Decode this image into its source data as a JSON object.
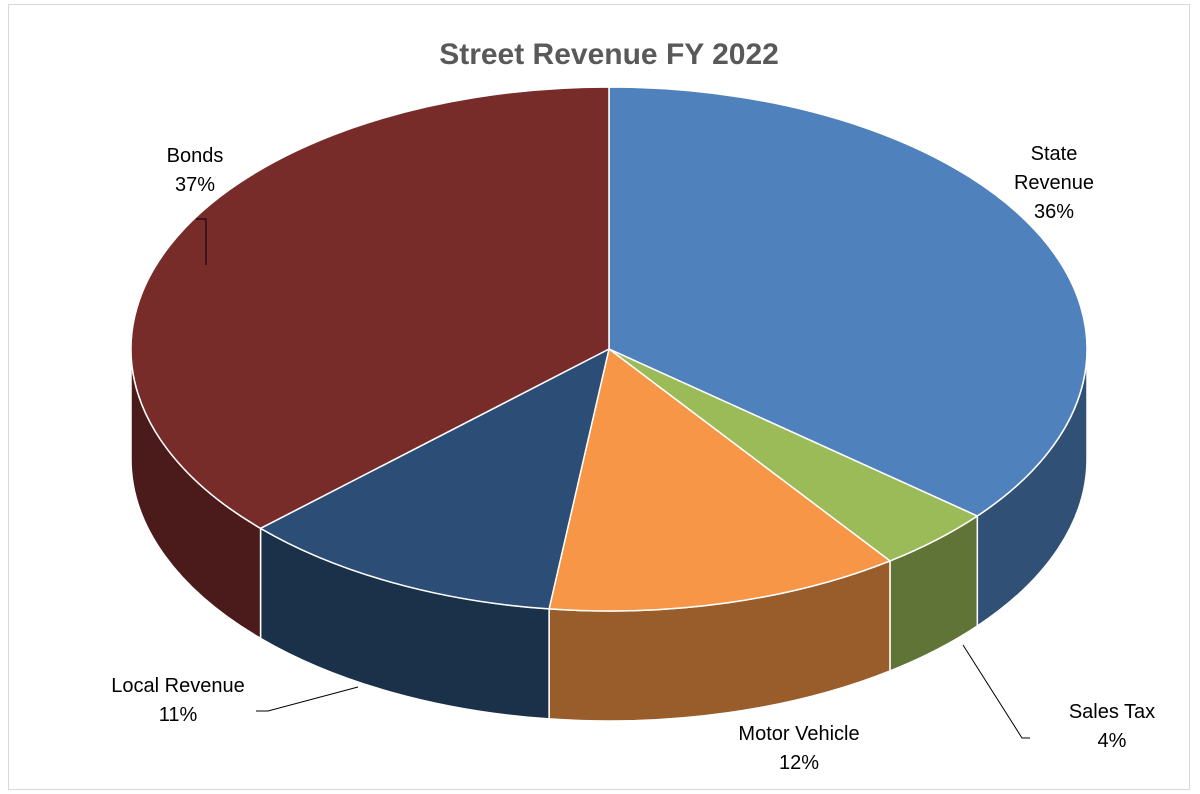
{
  "chart_data": {
    "type": "pie",
    "title": "Street Revenue FY 2022",
    "slices": [
      {
        "name": "State Revenue",
        "label_lines": [
          "State",
          "Revenue"
        ],
        "value": 36,
        "value_label": "36%",
        "color": "#4f81bd"
      },
      {
        "name": "Sales Tax",
        "label_lines": [
          "Sales Tax"
        ],
        "value": 4,
        "value_label": "4%",
        "color": "#9bbb59"
      },
      {
        "name": "Motor Vehicle",
        "label_lines": [
          "Motor Vehicle"
        ],
        "value": 12,
        "value_label": "12%",
        "color": "#f79646"
      },
      {
        "name": "Local Revenue",
        "label_lines": [
          "Local Revenue"
        ],
        "value": 11,
        "value_label": "11%",
        "color": "#2c4d75"
      },
      {
        "name": "Bonds",
        "label_lines": [
          "Bonds"
        ],
        "value": 37,
        "value_label": "37%",
        "color": "#772c2a"
      }
    ],
    "legend": "none",
    "style": "3d-pie"
  }
}
